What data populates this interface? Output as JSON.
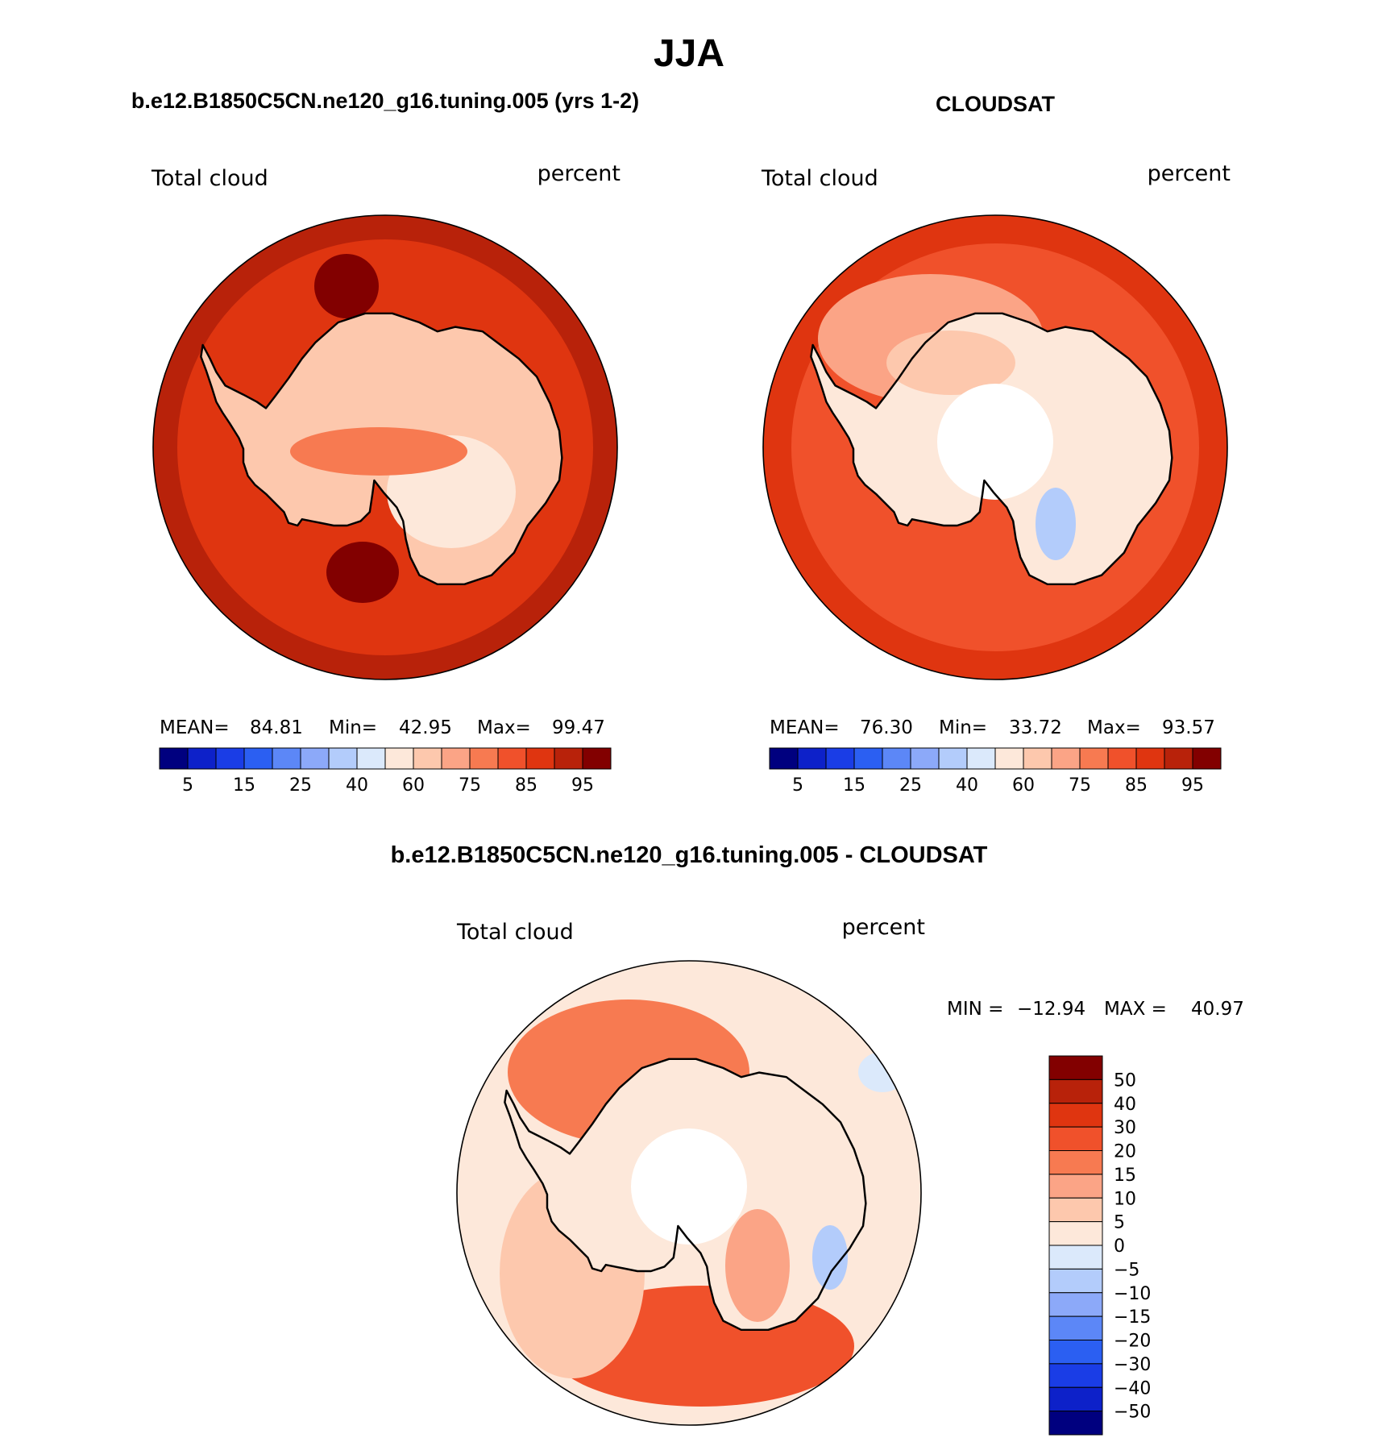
{
  "title": "JJA",
  "palette_main": [
    "#00007f",
    "#0d21c9",
    "#1a3de6",
    "#2b5ff2",
    "#5c87f7",
    "#8ca9f9",
    "#b3ccfb",
    "#dbe9fb",
    "#fde8da",
    "#fdc8ad",
    "#fba486",
    "#f77a51",
    "#f0512b",
    "#df3510",
    "#b8220a",
    "#820000"
  ],
  "palette_diff": [
    "#820000",
    "#b8220a",
    "#df3510",
    "#f0512b",
    "#f77a51",
    "#fba486",
    "#fdc8ad",
    "#fde8da",
    "#dbe9fb",
    "#b3ccfb",
    "#8ca9f9",
    "#5c87f7",
    "#2b5ff2",
    "#1a3de6",
    "#0d21c9",
    "#00007f"
  ],
  "panels": [
    {
      "id": "model",
      "title": "b.e12.B1850C5CN.ne120_g16.tuning.005 (yrs 1-2)",
      "variable": "Total cloud",
      "units": "percent",
      "stats": {
        "mean_label": "MEAN=",
        "mean": "84.81",
        "min_label": "Min=",
        "min": "42.95",
        "max_label": "Max=",
        "max": "99.47"
      },
      "colorbar_labels": [
        "5",
        "15",
        "25",
        "40",
        "60",
        "75",
        "85",
        "95"
      ],
      "field": {
        "ocean": "#df3510",
        "outer": "#b8220a",
        "land": "#fdc8ad",
        "interior": "#fde8da",
        "hole": false
      }
    },
    {
      "id": "obs",
      "title": "CLOUDSAT",
      "variable": "Total cloud",
      "units": "percent",
      "stats": {
        "mean_label": "MEAN=",
        "mean": "76.30",
        "min_label": "Min=",
        "min": "33.72",
        "max_label": "Max=",
        "max": "93.57"
      },
      "colorbar_labels": [
        "5",
        "15",
        "25",
        "40",
        "60",
        "75",
        "85",
        "95"
      ],
      "field": {
        "ocean": "#f0512b",
        "outer": "#df3510",
        "land": "#fde8da",
        "interior": "#fdc8ad",
        "hole": true
      }
    },
    {
      "id": "diff",
      "title": "b.e12.B1850C5CN.ne120_g16.tuning.005 - CLOUDSAT",
      "variable": "Total cloud",
      "units": "percent",
      "stats": {
        "min_label": "MIN =",
        "min": "−12.94",
        "max_label": "MAX =",
        "max": "40.97"
      },
      "colorbar_labels": [
        "50",
        "40",
        "30",
        "20",
        "15",
        "10",
        "5",
        "0",
        "−5",
        "−10",
        "−15",
        "−20",
        "−30",
        "−40",
        "−50"
      ],
      "field": {
        "ocean": "#fde8da",
        "outer": "#fdc8ad",
        "land": "#fde8da",
        "interior": "#fba486",
        "hole": true
      }
    }
  ]
}
